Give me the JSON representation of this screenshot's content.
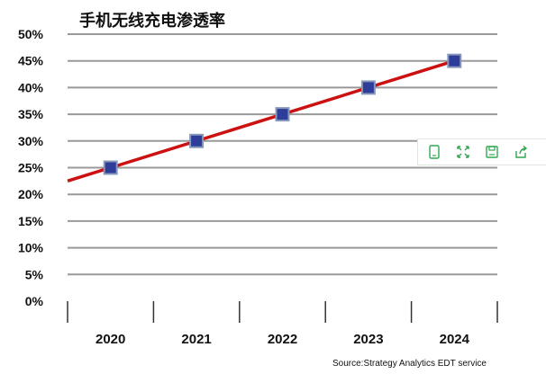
{
  "chart_data": {
    "type": "line",
    "title": "手机无线充电渗透率",
    "x": [
      "2020",
      "2021",
      "2022",
      "2023",
      "2024"
    ],
    "series": [
      {
        "values": [
          25,
          30,
          35,
          40,
          45
        ]
      }
    ],
    "ylim": [
      0,
      50
    ],
    "yticks": [
      "0%",
      "5%",
      "10%",
      "15%",
      "20%",
      "25%",
      "30%",
      "35%",
      "40%",
      "45%",
      "50%"
    ],
    "grid": true,
    "trendline": true,
    "colors": {
      "line": "#cc1111",
      "marker_fill": "#2f3d9a",
      "marker_border": "#8899bb",
      "grid": "#999999"
    },
    "source": "Source:Strategy Analytics EDT service"
  },
  "toolbar": {
    "icons": [
      "phone-icon",
      "fullscreen-icon",
      "save-icon",
      "share-icon"
    ]
  }
}
